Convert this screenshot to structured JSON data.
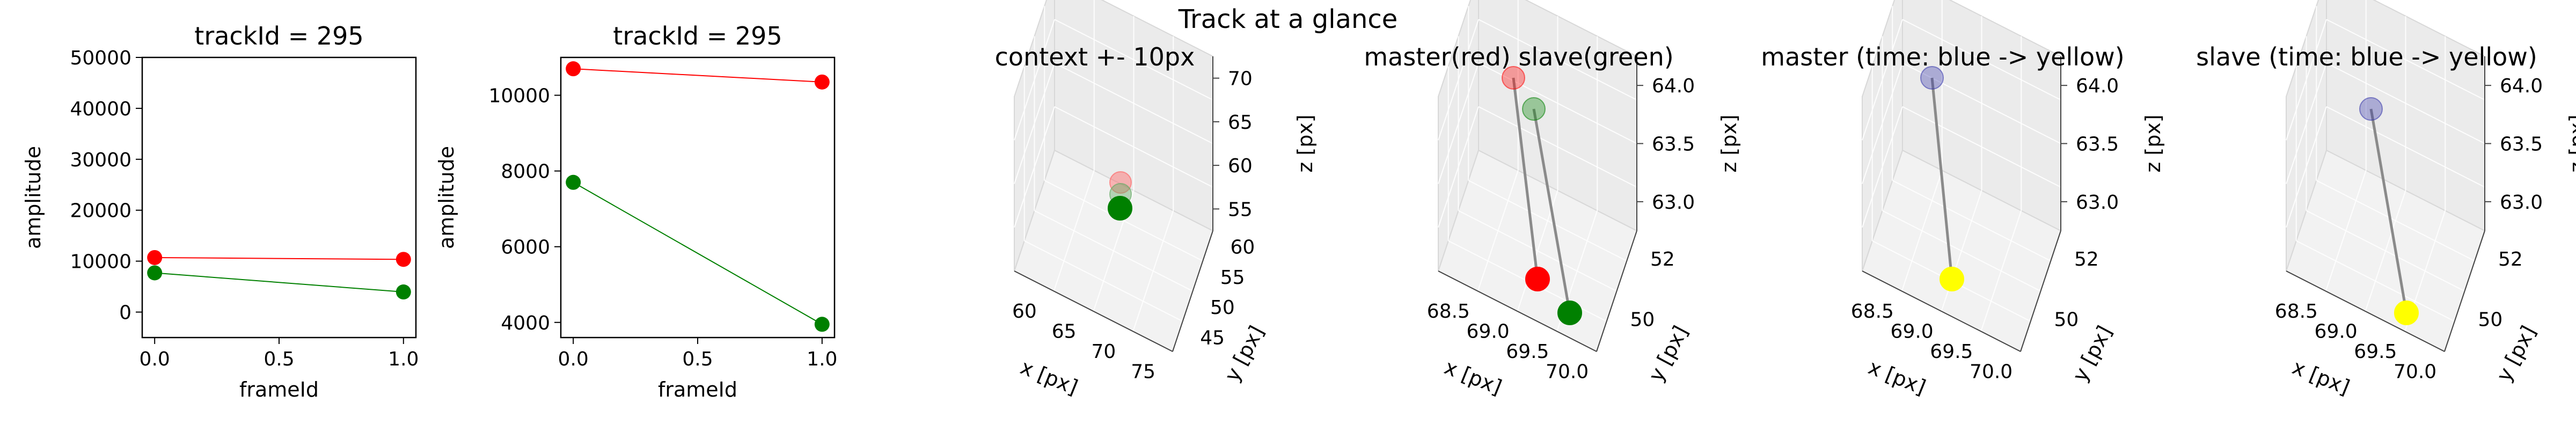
{
  "suptitle": "Track at a glance",
  "chart_data": [
    {
      "type": "line",
      "title": "trackId = 295",
      "xlabel": "frameId",
      "ylabel": "amplitude",
      "xlim": [
        -0.05,
        1.05
      ],
      "ylim": [
        -5000,
        50000
      ],
      "xticks": [
        "0.0",
        "0.5",
        "1.0"
      ],
      "yticks": [
        "0",
        "10000",
        "20000",
        "30000",
        "40000",
        "50000"
      ],
      "x": [
        0,
        1
      ],
      "series": [
        {
          "color": "#ff0000",
          "values": [
            10700,
            10350
          ]
        },
        {
          "color": "#008000",
          "values": [
            7700,
            3950
          ]
        }
      ]
    },
    {
      "type": "line",
      "title": "trackId = 295",
      "xlabel": "frameId",
      "ylabel": "amplitude",
      "xlim": [
        -0.05,
        1.05
      ],
      "ylim": [
        3600,
        11000
      ],
      "xticks": [
        "0.0",
        "0.5",
        "1.0"
      ],
      "yticks": [
        "4000",
        "6000",
        "8000",
        "10000"
      ],
      "x": [
        0,
        1
      ],
      "series": [
        {
          "color": "#ff0000",
          "values": [
            10700,
            10350
          ]
        },
        {
          "color": "#008000",
          "values": [
            7700,
            3950
          ]
        }
      ]
    },
    {
      "type": "scatter",
      "title": "context +- 10px",
      "xlabel": "x [px]",
      "ylabel": "y [px]",
      "zlabel": "z [px]",
      "xticks": [
        "60",
        "65",
        "70",
        "75"
      ],
      "yticks": [
        "45",
        "50",
        "55",
        "60"
      ],
      "zticks": [
        "55",
        "60",
        "65",
        "70"
      ],
      "points": [
        {
          "color": "#ff6666",
          "label": "master"
        },
        {
          "color": "#66aa66",
          "label": "slave"
        },
        {
          "color": "#008000",
          "label": "slave-end"
        }
      ]
    },
    {
      "type": "scatter",
      "title": "master(red) slave(green)",
      "xlabel": "x [px]",
      "ylabel": "y [px]",
      "zlabel": "z [px]",
      "xticks": [
        "68.5",
        "69.0",
        "69.5",
        "70.0"
      ],
      "yticks": [
        "50",
        "52"
      ],
      "zticks": [
        "63.0",
        "63.5",
        "64.0"
      ],
      "points": [
        {
          "color": "#ff0000",
          "label": "master-start"
        },
        {
          "color": "#ff0000",
          "label": "master-end"
        },
        {
          "color": "#008000",
          "label": "slave-start"
        },
        {
          "color": "#008000",
          "label": "slave-end"
        }
      ]
    },
    {
      "type": "scatter",
      "title": "master (time: blue -> yellow)",
      "xlabel": "x [px]",
      "ylabel": "y [px]",
      "zlabel": "z [px]",
      "xticks": [
        "68.5",
        "69.0",
        "69.5",
        "70.0"
      ],
      "yticks": [
        "50",
        "52"
      ],
      "zticks": [
        "63.0",
        "63.5",
        "64.0"
      ],
      "points": [
        {
          "color": "#3333aa",
          "label": "start"
        },
        {
          "color": "#ffff00",
          "label": "end"
        }
      ]
    },
    {
      "type": "scatter",
      "title": "slave (time: blue -> yellow)",
      "xlabel": "x [px]",
      "ylabel": "y [px]",
      "zlabel": "z [px]",
      "xticks": [
        "68.5",
        "69.0",
        "69.5",
        "70.0"
      ],
      "yticks": [
        "50",
        "52"
      ],
      "zticks": [
        "63.0",
        "63.5",
        "64.0"
      ],
      "points": [
        {
          "color": "#3333aa",
          "label": "start"
        },
        {
          "color": "#ffff00",
          "label": "end"
        }
      ]
    }
  ]
}
